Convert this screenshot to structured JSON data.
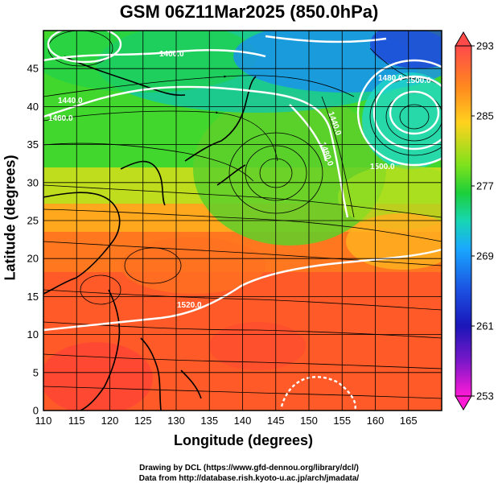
{
  "title": "GSM 06Z11Mar2025 (850.0hPa)",
  "axes": {
    "xlabel": "Longitude (degrees)",
    "ylabel": "Latitude  (degrees)",
    "xticks": [
      "110",
      "115",
      "120",
      "125",
      "130",
      "135",
      "140",
      "145",
      "150",
      "155",
      "160",
      "165"
    ],
    "yticks": [
      "0",
      "5",
      "10",
      "15",
      "20",
      "25",
      "30",
      "35",
      "40",
      "45"
    ]
  },
  "colorbar": {
    "ticks": [
      "293",
      "285",
      "277",
      "269",
      "261",
      "253"
    ],
    "gradient": [
      "#ff4a4a",
      "#ff8a1e",
      "#ffd21e",
      "#7ee21c",
      "#1ccf3a",
      "#17d6b4",
      "#1aa7ff",
      "#1b4fe0",
      "#1a16b8",
      "#7a18c8",
      "#d81ad8",
      "#ff1ad6"
    ]
  },
  "contour_labels": [
    "1400.0",
    "1440.0",
    "1460.0",
    "1480.0",
    "1500.0",
    "1520.0",
    "1440.0",
    "1480.0",
    "1500.0"
  ],
  "credits": {
    "line1": "Drawing by DCL (https://www.gfd-dennou.org/library/dcl/)",
    "line2": "Data from http://database.rish.kyoto-u.ac.jp/arch/jmadata/"
  },
  "chart_data": {
    "type": "heatmap",
    "title": "GSM 06Z11Mar2025 (850.0hPa)",
    "xlabel": "Longitude (degrees)",
    "ylabel": "Latitude  (degrees)",
    "xlim": [
      110,
      170
    ],
    "ylim": [
      0,
      50
    ],
    "colorbar_range": [
      253,
      293
    ],
    "colorbar_ticks": [
      293,
      285,
      277,
      269,
      261,
      253
    ],
    "grid": true,
    "overlays": [
      "streamlines",
      "geopotential height contours (white)",
      "coastlines"
    ]
  }
}
